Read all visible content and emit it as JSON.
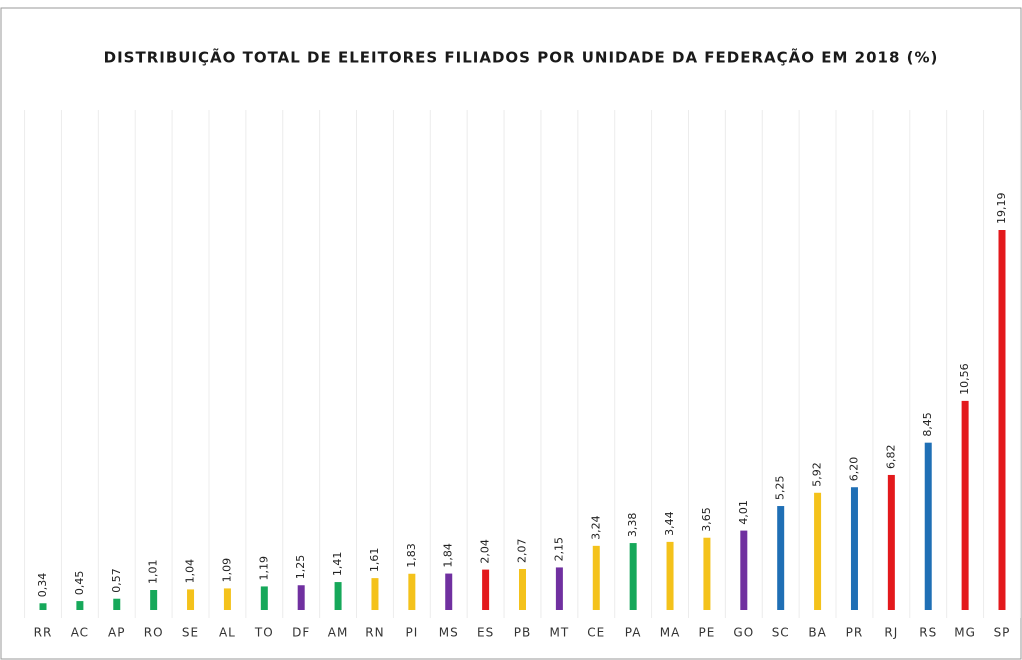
{
  "chart_data": {
    "type": "bar",
    "title": "DISTRIBUIÇÃO TOTAL DE ELEITORES FILIADOS POR UNIDADE DA FEDERAÇÃO EM 2018 (%)",
    "categories": [
      "RR",
      "AC",
      "AP",
      "RO",
      "SE",
      "AL",
      "TO",
      "DF",
      "AM",
      "RN",
      "PI",
      "MS",
      "ES",
      "PB",
      "MT",
      "CE",
      "PA",
      "MA",
      "PE",
      "GO",
      "SC",
      "BA",
      "PR",
      "RJ",
      "RS",
      "MG",
      "SP"
    ],
    "values": [
      0.34,
      0.45,
      0.57,
      1.01,
      1.04,
      1.09,
      1.19,
      1.25,
      1.41,
      1.61,
      1.83,
      1.84,
      2.04,
      2.07,
      2.15,
      3.24,
      3.38,
      3.44,
      3.65,
      4.01,
      5.25,
      5.92,
      6.2,
      6.82,
      8.45,
      10.56,
      19.19
    ],
    "value_labels": [
      "0,34",
      "0,45",
      "0,57",
      "1,01",
      "1,04",
      "1,09",
      "1,19",
      "1,25",
      "1,41",
      "1,61",
      "1,83",
      "1,84",
      "2,04",
      "2,07",
      "2,15",
      "3,24",
      "3,38",
      "3,44",
      "3,65",
      "4,01",
      "5,25",
      "5,92",
      "6,20",
      "6,82",
      "8,45",
      "10,56",
      "19,19"
    ],
    "colors": [
      "#16a85a",
      "#16a85a",
      "#16a85a",
      "#16a85a",
      "#f4c21b",
      "#f4c21b",
      "#16a85a",
      "#7030a0",
      "#16a85a",
      "#f4c21b",
      "#f4c21b",
      "#7030a0",
      "#e3191c",
      "#f4c21b",
      "#7030a0",
      "#f4c21b",
      "#16a85a",
      "#f4c21b",
      "#f4c21b",
      "#7030a0",
      "#1f6fb5",
      "#f4c21b",
      "#1f6fb5",
      "#e3191c",
      "#1f6fb5",
      "#e3191c",
      "#e3191c"
    ]
  }
}
